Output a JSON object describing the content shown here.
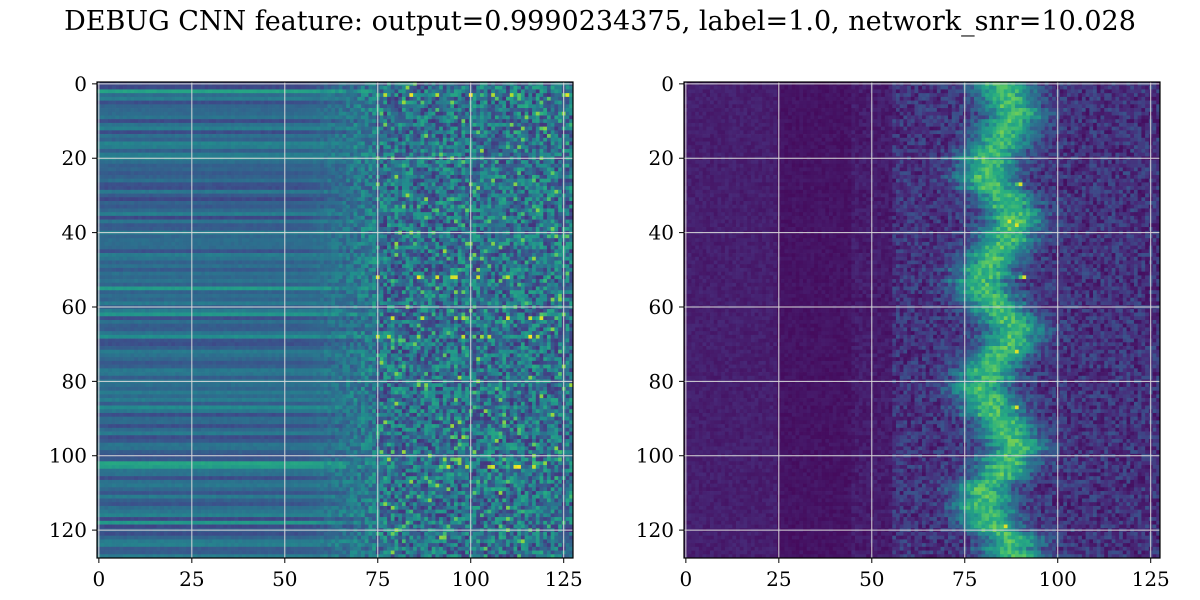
{
  "title": "DEBUG CNN feature: output=0.9990234375, label=1.0, network_snr=10.028",
  "colors": {
    "background": "#ffffff",
    "grid": "#d9d9d9",
    "axis": "#000000",
    "colormap": "viridis"
  },
  "chart_data": [
    {
      "type": "heatmap",
      "title": "",
      "xlabel": "",
      "ylabel": "",
      "shape": [
        128,
        128
      ],
      "xlim": [
        0,
        127
      ],
      "ylim": [
        127,
        0
      ],
      "grid": true,
      "colormap": "viridis",
      "xticks": [
        0,
        25,
        50,
        75,
        100,
        125
      ],
      "yticks": [
        0,
        20,
        40,
        60,
        80,
        100,
        120
      ],
      "xtick_labels": [
        "0",
        "25",
        "50",
        "75",
        "100",
        "125"
      ],
      "ytick_labels": [
        "0",
        "20",
        "40",
        "60",
        "80",
        "100",
        "120"
      ],
      "description_of_values": "left half (cols 0-70) smooth horizontal bands; right part (cols ~75-127) noisy with bright spots",
      "bright_rows": [
        3,
        52,
        63,
        68,
        103
      ]
    },
    {
      "type": "heatmap",
      "title": "",
      "xlabel": "",
      "ylabel": "",
      "shape": [
        128,
        128
      ],
      "xlim": [
        0,
        127
      ],
      "ylim": [
        127,
        0
      ],
      "grid": true,
      "colormap": "viridis",
      "xticks": [
        0,
        25,
        50,
        75,
        100,
        125
      ],
      "yticks": [
        0,
        20,
        40,
        60,
        80,
        100,
        120
      ],
      "xtick_labels": [
        "0",
        "25",
        "50",
        "75",
        "100",
        "125"
      ],
      "ytick_labels": [
        "0",
        "20",
        "40",
        "60",
        "80",
        "100",
        "120"
      ],
      "description_of_values": "mostly dark; activation concentrated around columns 80-95",
      "bright_rows": [
        27,
        37,
        38,
        52,
        72,
        87,
        119
      ]
    }
  ]
}
